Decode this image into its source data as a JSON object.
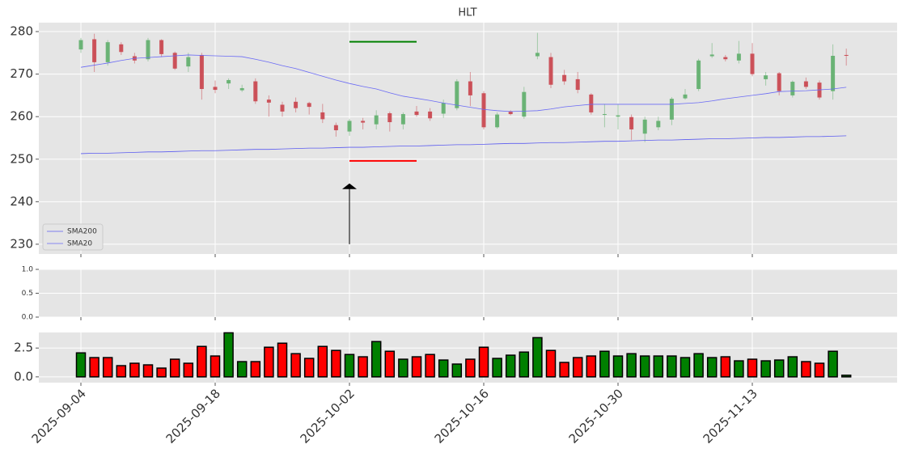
{
  "chart_data": [
    {
      "type": "candlestick",
      "title": "HLT",
      "categories": [
        "2025-09-04",
        null,
        null,
        null,
        null,
        null,
        null,
        null,
        null,
        null,
        "2025-09-18",
        null,
        null,
        null,
        null,
        null,
        null,
        null,
        null,
        null,
        "2025-10-02",
        null,
        null,
        null,
        null,
        null,
        null,
        null,
        null,
        null,
        "2025-10-16",
        null,
        null,
        null,
        null,
        null,
        null,
        null,
        null,
        null,
        "2025-10-30",
        null,
        null,
        null,
        null,
        null,
        null,
        null,
        null,
        null,
        "2025-11-13",
        null,
        null,
        null,
        null,
        null,
        null,
        null
      ],
      "open": [
        275.8,
        278.2,
        272.8,
        277,
        274.2,
        273.5,
        278,
        275,
        271.8,
        274.5,
        267,
        267.8,
        266.2,
        268.3,
        264,
        262.8,
        263.5,
        263.2,
        261,
        258,
        256.5,
        259,
        258.2,
        260.8,
        258.2,
        261.2,
        261.2,
        260.7,
        262,
        268.3,
        265.5,
        257.5,
        261.2,
        260,
        274.2,
        274,
        269.8,
        268.8,
        265.2,
        260.5,
        260,
        259.9,
        256,
        257.5,
        259.3,
        264.3,
        266.5,
        274.2,
        274,
        273.2,
        274.8,
        268.8,
        270.2,
        265,
        268.3,
        268,
        266,
        274.5
      ],
      "high": [
        278.5,
        279.5,
        278,
        277.5,
        275,
        278.5,
        278.2,
        275.3,
        275,
        275,
        268.5,
        269,
        267.5,
        269,
        265,
        263.5,
        264.5,
        263.5,
        263,
        258.6,
        259.5,
        259.7,
        261.5,
        261.2,
        261,
        262.5,
        262,
        264,
        268.8,
        270.5,
        266,
        261,
        261.5,
        267,
        279.7,
        275,
        271,
        270.5,
        265.5,
        263,
        263,
        260.5,
        260,
        260,
        264.6,
        266.5,
        273.6,
        277.3,
        274.5,
        277.8,
        277.3,
        270.5,
        270.5,
        268.5,
        269.2,
        268.5,
        277,
        276
      ],
      "low": [
        275,
        270.5,
        272,
        274.5,
        272.5,
        273,
        274,
        271,
        270.5,
        264,
        265.5,
        266.5,
        265.8,
        263,
        260,
        260,
        261,
        260.5,
        258.5,
        255.3,
        255.5,
        257,
        257,
        256.5,
        257,
        260,
        259,
        259.7,
        261.5,
        262.5,
        257,
        257.2,
        260.3,
        259.5,
        273.5,
        266.7,
        267.5,
        265.5,
        260.5,
        257.5,
        257,
        254.5,
        254,
        256.8,
        258,
        264,
        266,
        273.8,
        273,
        272.5,
        269.5,
        267.3,
        265,
        264.5,
        266.5,
        264,
        264,
        272
      ],
      "close": [
        278,
        272.8,
        277.5,
        275.2,
        273.2,
        278,
        274.7,
        271.3,
        274,
        266.5,
        266.3,
        268.6,
        266.7,
        263.6,
        263.3,
        261.2,
        262,
        262.3,
        259.4,
        256.8,
        259,
        258.6,
        260.3,
        258.7,
        260.6,
        260.4,
        259.6,
        263.2,
        268.3,
        265,
        257.5,
        260.5,
        260.6,
        265.8,
        275,
        267.5,
        268.3,
        266.3,
        261,
        260.6,
        260.3,
        257,
        259.3,
        259,
        264.2,
        265.2,
        273.2,
        274.6,
        273.5,
        274.8,
        270,
        269.7,
        266,
        268.2,
        267,
        264.5,
        274.3,
        274.3
      ],
      "up_color": "#5fae6b",
      "down_color": "#c9444c",
      "series": [
        {
          "name": "SMA200",
          "color": "#5b5bf0",
          "values": [
            251.3,
            251.4,
            251.4,
            251.5,
            251.6,
            251.7,
            251.7,
            251.8,
            251.9,
            252.0,
            252.0,
            252.1,
            252.2,
            252.3,
            252.3,
            252.4,
            252.5,
            252.6,
            252.6,
            252.7,
            252.8,
            252.8,
            252.9,
            253.0,
            253.1,
            253.1,
            253.2,
            253.3,
            253.4,
            253.4,
            253.5,
            253.6,
            253.7,
            253.7,
            253.8,
            253.9,
            253.9,
            254.0,
            254.1,
            254.2,
            254.2,
            254.3,
            254.4,
            254.5,
            254.5,
            254.6,
            254.7,
            254.8,
            254.8,
            254.9,
            255.0,
            255.1,
            255.1,
            255.2,
            255.3,
            255.3,
            255.4,
            255.5
          ]
        },
        {
          "name": "SMA20",
          "color": "#6a6af5",
          "values": [
            271.6,
            272.1,
            272.6,
            273.2,
            273.7,
            273.9,
            274.1,
            274.3,
            274.5,
            274.4,
            274.3,
            274.2,
            274.1,
            273.5,
            272.8,
            272.0,
            271.3,
            270.4,
            269.5,
            268.6,
            267.8,
            267.1,
            266.5,
            265.6,
            264.8,
            264.3,
            263.8,
            263.2,
            262.7,
            262.2,
            261.7,
            261.4,
            261.2,
            261.3,
            261.4,
            261.8,
            262.3,
            262.6,
            262.9,
            262.9,
            262.9,
            262.9,
            262.9,
            262.9,
            262.9,
            263.1,
            263.3,
            263.7,
            264.2,
            264.6,
            265.0,
            265.4,
            265.9,
            266.0,
            266.1,
            266.3,
            266.5,
            266.9
          ]
        }
      ],
      "hlines": [
        {
          "y": 277.6,
          "x": [
            20,
            25
          ],
          "color": "#008000"
        },
        {
          "y": 249.6,
          "x": [
            20,
            25
          ],
          "color": "#ff0000"
        }
      ],
      "arrow": {
        "x": 20,
        "y": [
          230,
          244.3
        ],
        "color": "#000000"
      },
      "ylim": [
        227.7,
        282.1
      ],
      "yticks": [
        230,
        240,
        250,
        260,
        270,
        280
      ],
      "grid": true,
      "legend": "lower left"
    },
    {
      "type": "line",
      "series": [],
      "ylim": [
        0,
        1
      ],
      "yticks": [
        {
          "value": 0,
          "label": "0.0"
        },
        {
          "value": 0.5,
          "label": "0.5"
        },
        {
          "value": 1,
          "label": "1.0"
        }
      ],
      "grid": true
    },
    {
      "type": "bar",
      "values": [
        2.08,
        1.67,
        1.67,
        0.97,
        1.18,
        1.04,
        0.76,
        1.53,
        1.18,
        2.64,
        1.81,
        3.82,
        1.32,
        1.32,
        2.57,
        2.92,
        2.01,
        1.6,
        2.64,
        2.29,
        1.94,
        1.74,
        3.06,
        2.22,
        1.53,
        1.74,
        1.94,
        1.46,
        1.11,
        1.53,
        2.57,
        1.6,
        1.88,
        2.15,
        3.4,
        2.29,
        1.25,
        1.67,
        1.81,
        2.22,
        1.81,
        2.01,
        1.81,
        1.81,
        1.81,
        1.67,
        2.01,
        1.67,
        1.74,
        1.39,
        1.53,
        1.39,
        1.46,
        1.74,
        1.32,
        1.18,
        2.22,
        0.14
      ],
      "colors": [
        "#008000",
        "#ff0000",
        "#ff0000",
        "#ff0000",
        "#ff0000",
        "#ff0000",
        "#ff0000",
        "#ff0000",
        "#ff0000",
        "#ff0000",
        "#ff0000",
        "#008000",
        "#008000",
        "#ff0000",
        "#ff0000",
        "#ff0000",
        "#ff0000",
        "#ff0000",
        "#ff0000",
        "#ff0000",
        "#008000",
        "#ff0000",
        "#008000",
        "#ff0000",
        "#008000",
        "#ff0000",
        "#ff0000",
        "#008000",
        "#008000",
        "#ff0000",
        "#ff0000",
        "#008000",
        "#008000",
        "#008000",
        "#008000",
        "#ff0000",
        "#ff0000",
        "#ff0000",
        "#ff0000",
        "#008000",
        "#008000",
        "#008000",
        "#008000",
        "#008000",
        "#008000",
        "#008000",
        "#008000",
        "#008000",
        "#ff0000",
        "#008000",
        "#ff0000",
        "#008000",
        "#008000",
        "#008000",
        "#ff0000",
        "#ff0000",
        "#008000",
        "#008000"
      ],
      "ylim": [
        -0.5,
        3.85
      ],
      "yticks": [
        {
          "value": 0,
          "label": "0.0"
        },
        2.5
      ],
      "grid": true
    }
  ]
}
